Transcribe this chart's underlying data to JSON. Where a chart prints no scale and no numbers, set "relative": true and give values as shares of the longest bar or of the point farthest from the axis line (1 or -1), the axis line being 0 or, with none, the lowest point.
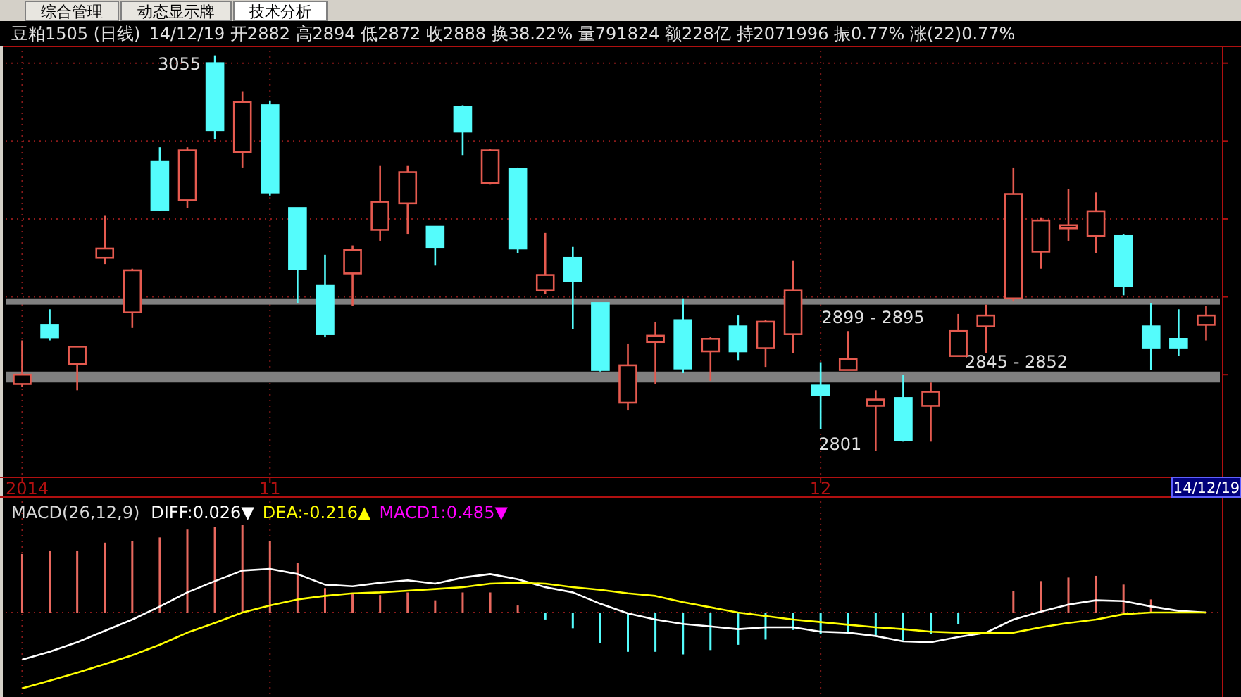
{
  "chart_data": [
    {
      "type": "candlestick",
      "title": "豆粕1505 (日线)",
      "subtitle": "14/12/19 开2882 高2894 低2872 收2888 换38.22% 量791824 额228亿 持2071996 振0.77% 涨(22)0.77%",
      "categories": [
        "2014",
        null,
        null,
        null,
        null,
        null,
        null,
        null,
        null,
        "11",
        null,
        null,
        null,
        null,
        null,
        null,
        null,
        null,
        null,
        null,
        null,
        null,
        null,
        null,
        null,
        null,
        null,
        null,
        null,
        "12",
        null,
        null,
        null,
        null,
        null,
        null,
        null,
        null,
        null,
        null,
        null,
        null,
        null,
        null
      ],
      "ohlc": [
        [
          2844,
          2872,
          2842,
          2850
        ],
        [
          2882,
          2892,
          2872,
          2874
        ],
        [
          2857,
          2868,
          2840,
          2868
        ],
        [
          2925,
          2952,
          2921,
          2931
        ],
        [
          2890,
          2918,
          2880,
          2917
        ],
        [
          2987,
          2996,
          2955,
          2956
        ],
        [
          2962,
          2996,
          2957,
          2994
        ],
        [
          3050,
          3055,
          3001,
          3007
        ],
        [
          2993,
          3032,
          2983,
          3025
        ],
        [
          3023,
          3026,
          2965,
          2967
        ],
        [
          2957,
          2957,
          2896,
          2918
        ],
        [
          2907,
          2927,
          2874,
          2876
        ],
        [
          2915,
          2933,
          2894,
          2930
        ],
        [
          2943,
          2984,
          2936,
          2961
        ],
        [
          2960,
          2984,
          2940,
          2980
        ],
        [
          2945,
          2945,
          2920,
          2932
        ],
        [
          3022,
          3023,
          2991,
          3006
        ],
        [
          2973,
          2995,
          2972,
          2994
        ],
        [
          2982,
          2983,
          2928,
          2931
        ],
        [
          2904,
          2941,
          2902,
          2914
        ],
        [
          2925,
          2932,
          2879,
          2910
        ],
        [
          2896,
          2896,
          2852,
          2853
        ],
        [
          2832,
          2870,
          2827,
          2856
        ],
        [
          2871,
          2884,
          2844,
          2875
        ],
        [
          2885,
          2899,
          2851,
          2854
        ],
        [
          2865,
          2874,
          2846,
          2873
        ],
        [
          2881,
          2888,
          2859,
          2865
        ],
        [
          2867,
          2885,
          2855,
          2884
        ],
        [
          2876,
          2923,
          2864,
          2904
        ],
        [
          2843,
          2858,
          2815,
          2837
        ],
        [
          2853,
          2878,
          2853,
          2860
        ],
        [
          2830,
          2840,
          2801,
          2834
        ],
        [
          2835,
          2850,
          2807,
          2808
        ],
        [
          2830,
          2845,
          2807,
          2839
        ],
        [
          2862,
          2889,
          2862,
          2878
        ],
        [
          2881,
          2895,
          2864,
          2888
        ],
        [
          2899,
          2983,
          2897,
          2966
        ],
        [
          2929,
          2951,
          2918,
          2949
        ],
        [
          2944,
          2969,
          2936,
          2946
        ],
        [
          2939,
          2967,
          2928,
          2955
        ],
        [
          2939,
          2940,
          2901,
          2907
        ],
        [
          2881,
          2896,
          2853,
          2867
        ],
        [
          2873,
          2892,
          2862,
          2867
        ],
        [
          2882,
          2894,
          2872,
          2888
        ]
      ],
      "colors": [
        "#e55a4f",
        "#54fcfc",
        "#e55a4f",
        "#e55a4f",
        "#e55a4f",
        "#54fcfc",
        "#e55a4f",
        "#54fcfc",
        "#e55a4f",
        "#54fcfc",
        "#54fcfc",
        "#54fcfc",
        "#e55a4f",
        "#e55a4f",
        "#e55a4f",
        "#54fcfc",
        "#54fcfc",
        "#e55a4f",
        "#54fcfc",
        "#e55a4f",
        "#54fcfc",
        "#54fcfc",
        "#e55a4f",
        "#e55a4f",
        "#54fcfc",
        "#e55a4f",
        "#54fcfc",
        "#e55a4f",
        "#e55a4f",
        "#54fcfc",
        "#e55a4f",
        "#e55a4f",
        "#54fcfc",
        "#e55a4f",
        "#e55a4f",
        "#e55a4f",
        "#e55a4f",
        "#e55a4f",
        "#e55a4f",
        "#e55a4f",
        "#54fcfc",
        "#54fcfc",
        "#54fcfc",
        "#e55a4f"
      ],
      "ylim": [
        2785,
        3058
      ],
      "yticks": [
        {
          "value": 2850,
          "label": null
        },
        {
          "value": 2900,
          "label": null
        },
        {
          "value": 2950,
          "label": null
        },
        {
          "value": 3000,
          "label": null
        },
        {
          "value": 3050,
          "label": null
        }
      ],
      "grid": true,
      "tick_labels": "x",
      "bands": [
        {
          "axis": "y",
          "from": 2845,
          "to": 2852,
          "label": "2845 - 2852",
          "color": "#808080"
        },
        {
          "axis": "y",
          "from": 2895,
          "to": 2899,
          "label": "2899 - 2895",
          "color": "#808080"
        }
      ],
      "annotations": [
        "综合管理",
        "动态显示牌",
        "技术分析",
        "14/12/19",
        "3055",
        "2801"
      ]
    },
    {
      "type": "bar",
      "title": "MACD(26,12,9)",
      "annotations": [
        "MACD1:0.485▼"
      ],
      "relative": true,
      "grid": true,
      "legend": "top left",
      "tick_labels": false,
      "categories": [
        "2014",
        null,
        null,
        null,
        null,
        null,
        null,
        null,
        null,
        "11",
        null,
        null,
        null,
        null,
        null,
        null,
        null,
        null,
        null,
        null,
        null,
        null,
        null,
        null,
        null,
        null,
        null,
        null,
        null,
        "12",
        null,
        null,
        null,
        null,
        null,
        null,
        null,
        null,
        null,
        null,
        null,
        null,
        null,
        null
      ],
      "series": [
        {
          "type": "line",
          "name": "DIFF:0.026▼",
          "color": "#ffffff",
          "values": [
            -0.54,
            -0.45,
            -0.34,
            -0.21,
            -0.08,
            0.07,
            0.23,
            0.36,
            0.48,
            0.5,
            0.44,
            0.32,
            0.3,
            0.34,
            0.37,
            0.33,
            0.4,
            0.44,
            0.38,
            0.29,
            0.23,
            0.1,
            -0.01,
            -0.08,
            -0.13,
            -0.16,
            -0.19,
            -0.17,
            -0.17,
            -0.22,
            -0.23,
            -0.27,
            -0.33,
            -0.34,
            -0.28,
            -0.23,
            -0.08,
            0.01,
            0.09,
            0.14,
            0.13,
            0.07,
            0.02,
            0
          ]
        },
        {
          "type": "line",
          "name": "DEA:-0.216▲",
          "color": "#ffff00",
          "values": [
            -0.87,
            -0.78,
            -0.69,
            -0.59,
            -0.49,
            -0.37,
            -0.23,
            -0.12,
            0,
            0.08,
            0.15,
            0.19,
            0.22,
            0.23,
            0.25,
            0.27,
            0.29,
            0.33,
            0.34,
            0.33,
            0.29,
            0.26,
            0.22,
            0.19,
            0.12,
            0.06,
            0,
            -0.04,
            -0.08,
            -0.11,
            -0.14,
            -0.17,
            -0.19,
            -0.22,
            -0.23,
            -0.23,
            -0.23,
            -0.17,
            -0.12,
            -0.08,
            -0.02,
            0,
            0,
            0
          ]
        },
        {
          "type": "bar",
          "colors": [
            "#e8685e",
            "#e8685e",
            "#e8685e",
            "#e8685e",
            "#e8685e",
            "#e8685e",
            "#e8685e",
            "#e8685e",
            "#e8685e",
            "#e8685e",
            "#e8685e",
            "#e8685e",
            "#e8685e",
            "#e8685e",
            "#e8685e",
            "#e8685e",
            "#e8685e",
            "#e8685e",
            "#e8685e",
            "#54fcfc",
            "#54fcfc",
            "#54fcfc",
            "#54fcfc",
            "#54fcfc",
            "#54fcfc",
            "#54fcfc",
            "#54fcfc",
            "#54fcfc",
            "#54fcfc",
            "#54fcfc",
            "#54fcfc",
            "#54fcfc",
            "#54fcfc",
            "#54fcfc",
            "#54fcfc",
            "#e8685e",
            "#e8685e",
            "#e8685e",
            "#e8685e",
            "#e8685e",
            "#e8685e",
            "#e8685e",
            null,
            "#e8685e"
          ],
          "values": [
            0.67,
            0.71,
            0.71,
            0.8,
            0.82,
            0.86,
            0.95,
            0.98,
            1.0,
            0.82,
            0.57,
            0.28,
            0.22,
            0.2,
            0.23,
            0.14,
            0.23,
            0.23,
            0.08,
            -0.08,
            -0.18,
            -0.35,
            -0.45,
            -0.45,
            -0.48,
            -0.43,
            -0.37,
            -0.31,
            -0.2,
            -0.25,
            -0.25,
            -0.26,
            -0.32,
            -0.25,
            -0.13,
            0,
            0.25,
            0.36,
            0.4,
            0.42,
            0.32,
            0.15,
            null,
            0
          ]
        }
      ]
    }
  ]
}
